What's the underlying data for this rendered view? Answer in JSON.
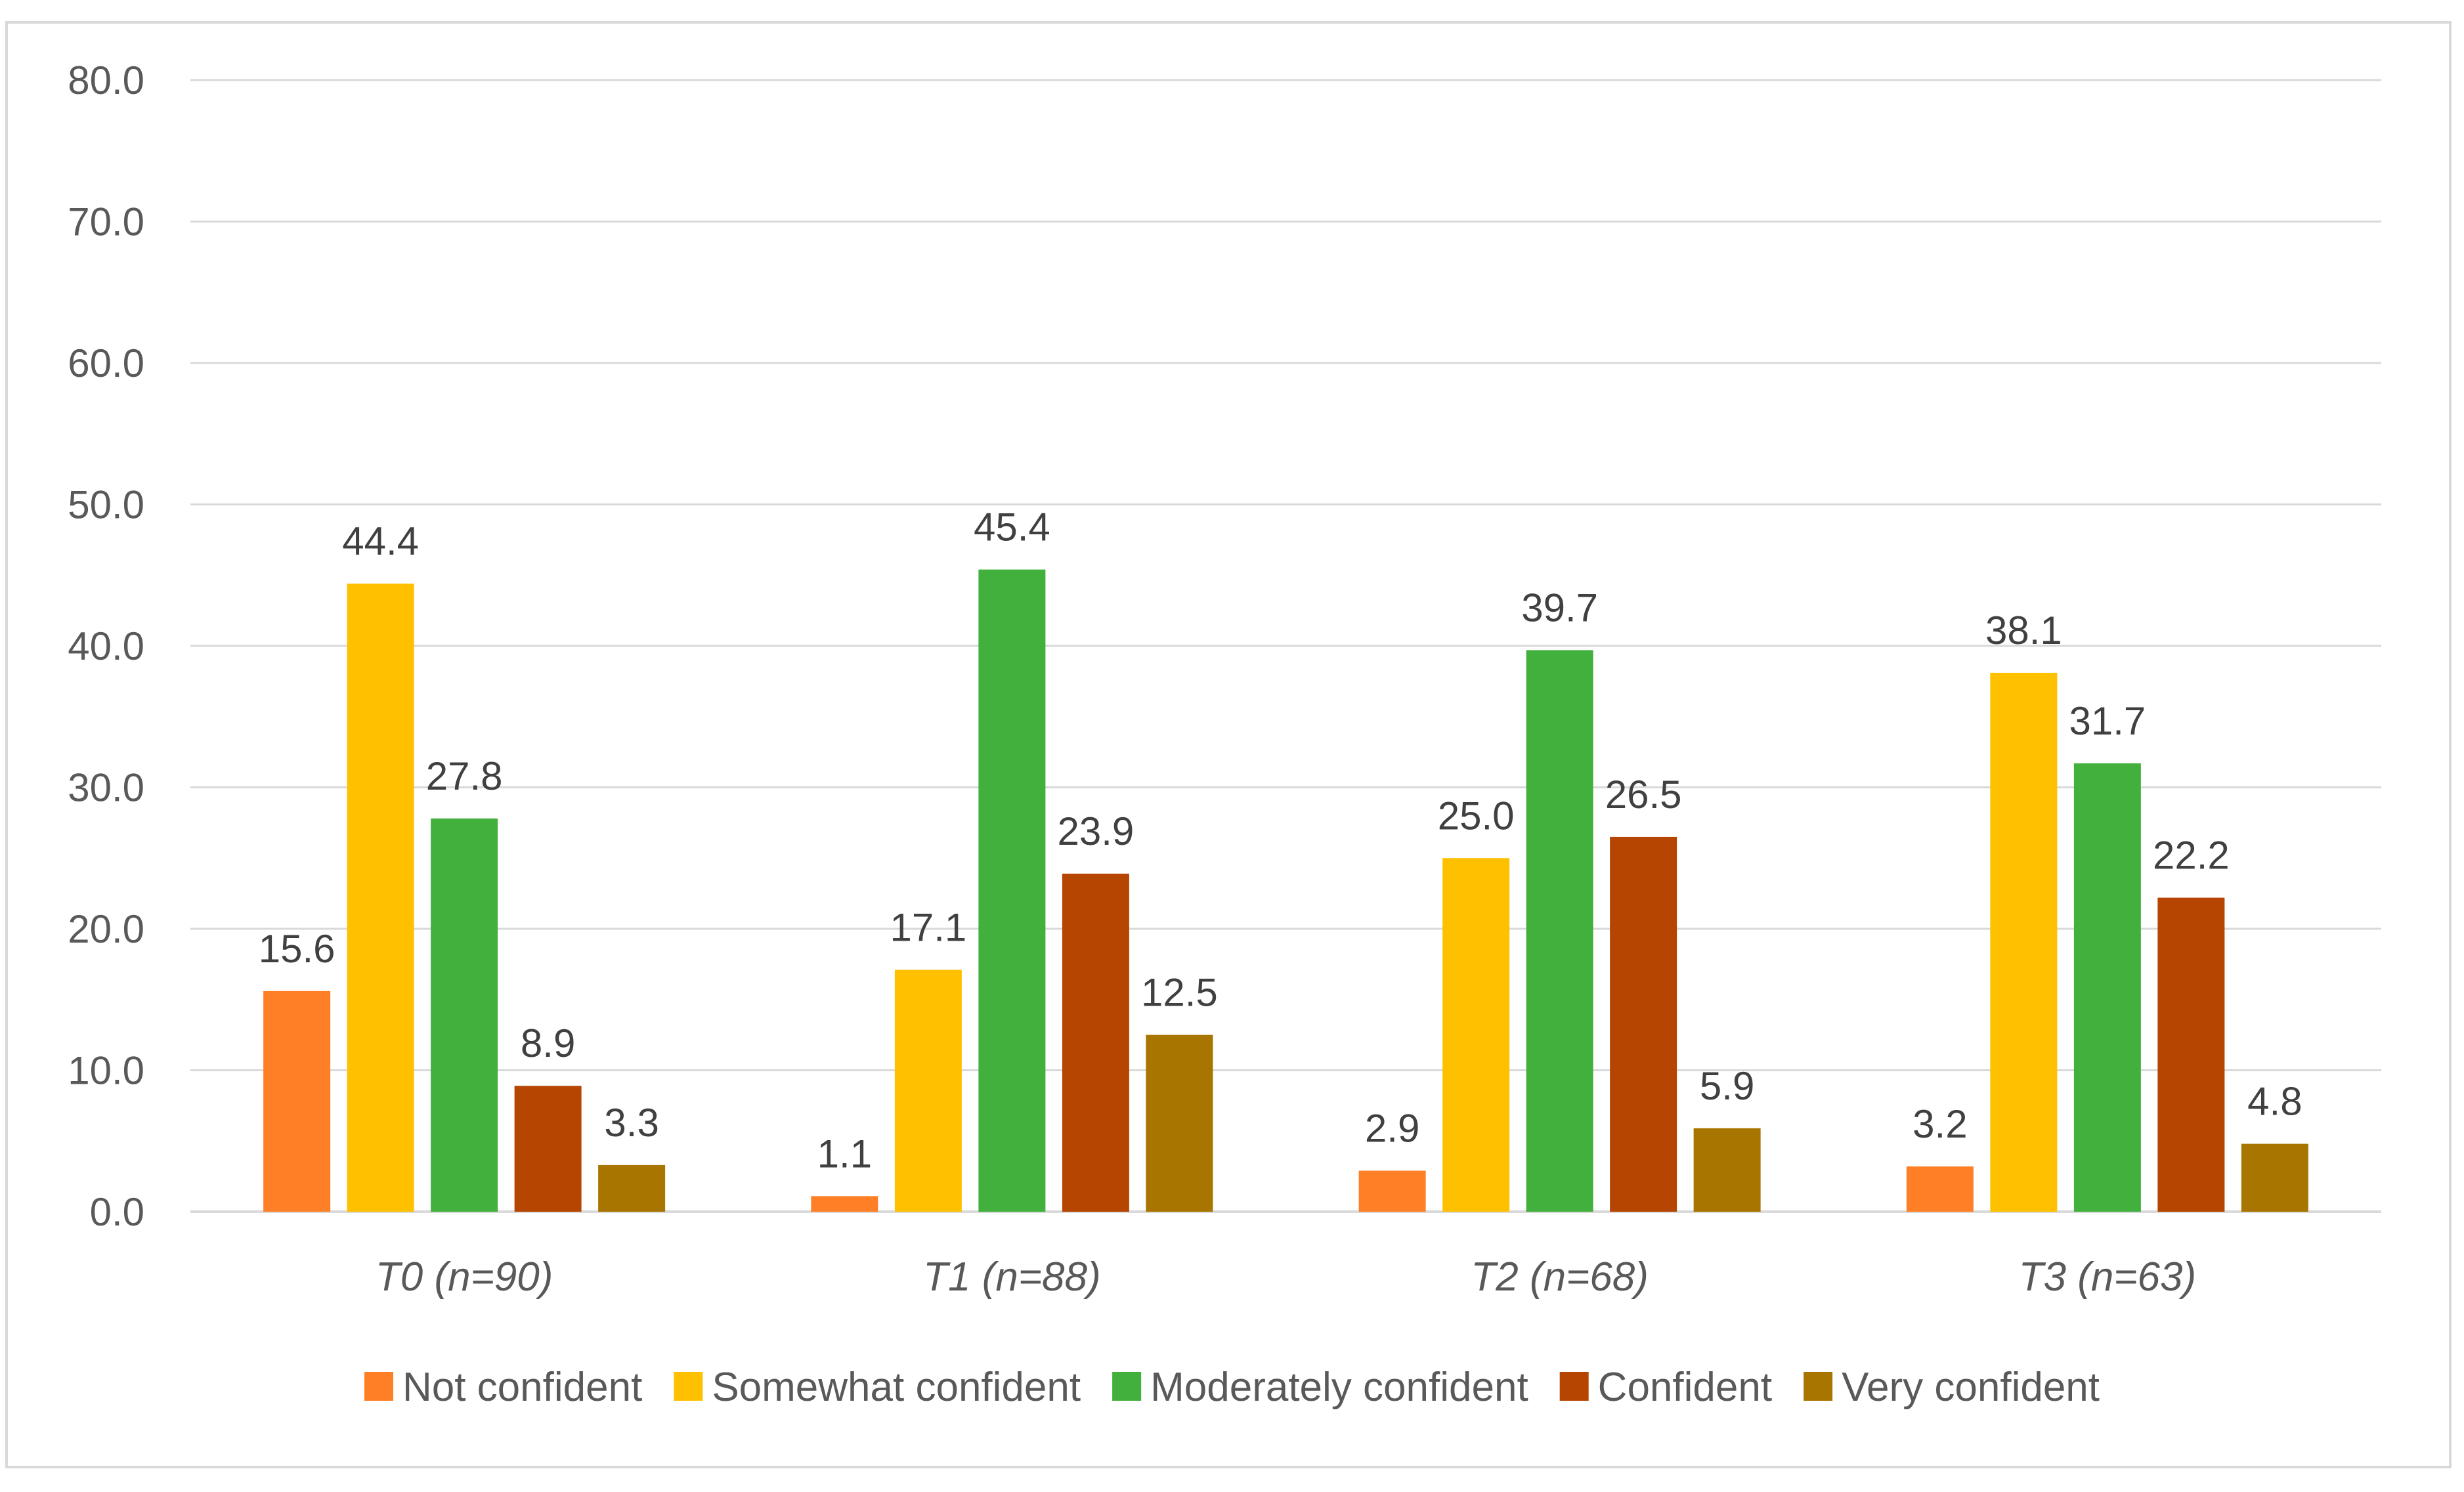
{
  "chart_data": {
    "type": "bar",
    "title": "",
    "xlabel": "",
    "ylabel": "",
    "ylim": [
      0,
      80
    ],
    "yticks": [
      "0.0",
      "10.0",
      "20.0",
      "30.0",
      "40.0",
      "50.0",
      "60.0",
      "70.0",
      "80.0"
    ],
    "grid": true,
    "legend_position": "bottom",
    "categories": [
      "T0 (n=90)",
      "T1 (n=88)",
      "T2 (n=68)",
      "T3 (n=63)"
    ],
    "series": [
      {
        "name": "Not confident",
        "color": "#FF7F27",
        "values": [
          15.6,
          1.1,
          2.9,
          3.2
        ],
        "labels": [
          "15.6",
          "1.1",
          "2.9",
          "3.2"
        ]
      },
      {
        "name": "Somewhat confident",
        "color": "#FFC000",
        "values": [
          44.4,
          17.1,
          25.0,
          38.1
        ],
        "labels": [
          "44.4",
          "17.1",
          "25.0",
          "38.1"
        ]
      },
      {
        "name": "Moderately confident",
        "color": "#41B03C",
        "values": [
          27.8,
          45.4,
          39.7,
          31.7
        ],
        "labels": [
          "27.8",
          "45.4",
          "39.7",
          "31.7"
        ]
      },
      {
        "name": "Confident",
        "color": "#B54500",
        "values": [
          8.9,
          23.9,
          26.5,
          22.2
        ],
        "labels": [
          "8.9",
          "23.9",
          "26.5",
          "22.2"
        ]
      },
      {
        "name": "Very confident",
        "color": "#A87500",
        "values": [
          3.3,
          12.5,
          5.9,
          4.8
        ],
        "labels": [
          "3.3",
          "12.5",
          "5.9",
          "4.8"
        ]
      }
    ]
  }
}
